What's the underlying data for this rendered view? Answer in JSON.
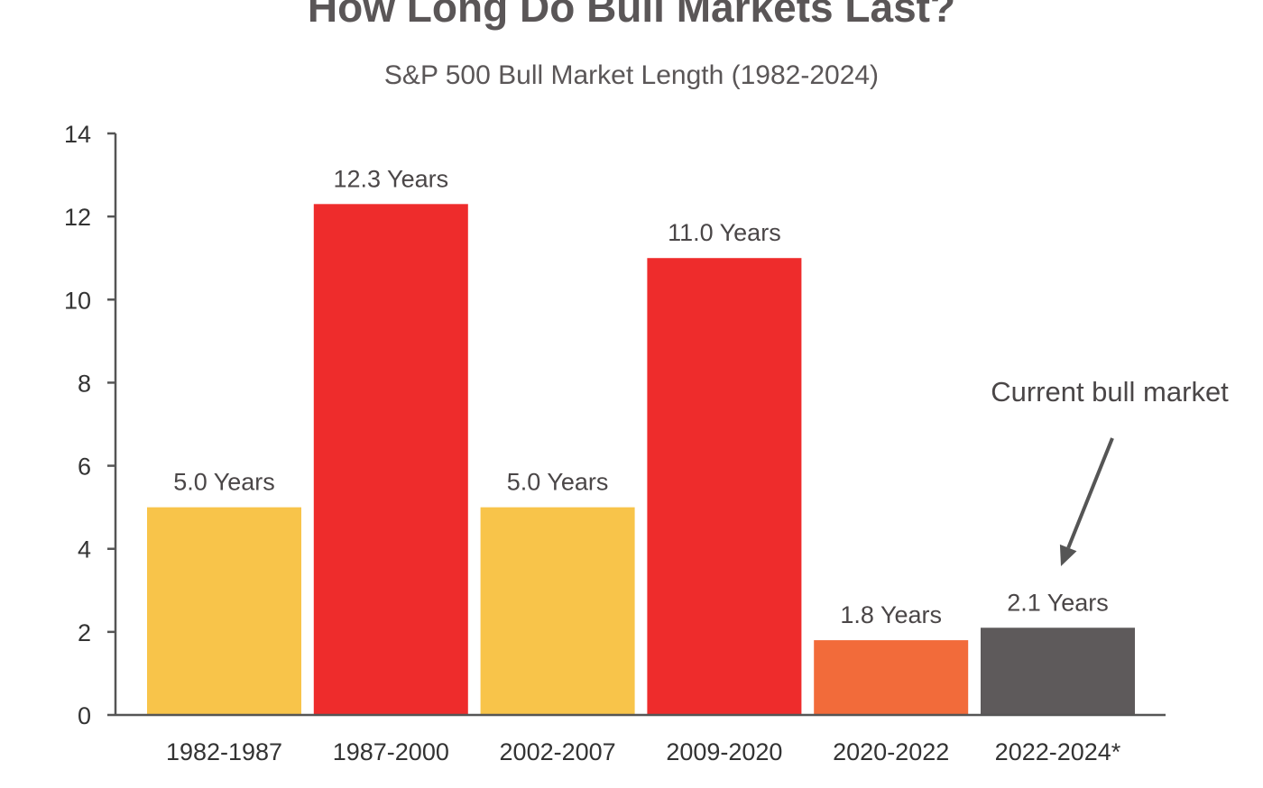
{
  "chart_data": {
    "type": "bar",
    "title": "How Long Do Bull Markets Last?",
    "subtitle": "S&P 500 Bull Market Length (1982-2024)",
    "xlabel": "",
    "ylabel": "",
    "ylim": [
      0,
      14
    ],
    "yticks": [
      0,
      2,
      4,
      6,
      8,
      10,
      12,
      14
    ],
    "grid": false,
    "categories": [
      "1982-1987",
      "1987-2000",
      "2002-2007",
      "2009-2020",
      "2020-2022",
      "2022-2024*"
    ],
    "values": [
      5.0,
      12.3,
      5.0,
      11.0,
      1.8,
      2.1
    ],
    "value_labels": [
      "5.0 Years",
      "12.3 Years",
      "5.0 Years",
      "11.0 Years",
      "1.8 Years",
      "2.1 Years"
    ],
    "colors": [
      "#f8c44a",
      "#ee2c2c",
      "#f8c44a",
      "#ee2c2c",
      "#f26b3a",
      "#5e5a5b"
    ],
    "annotation": {
      "text": "Current bull market",
      "target_index": 5
    }
  }
}
